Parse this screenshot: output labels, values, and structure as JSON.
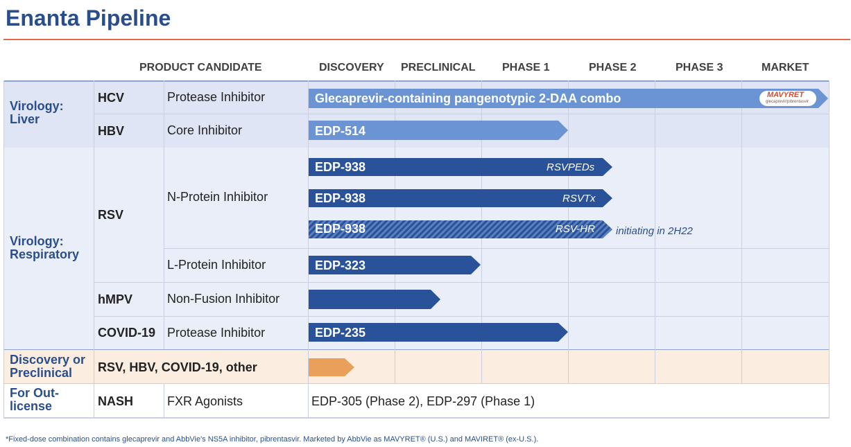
{
  "title": "Enanta Pipeline",
  "headers": {
    "product_candidate": "PRODUCT CANDIDATE",
    "phases": [
      "DISCOVERY",
      "PRECLINICAL",
      "PHASE 1",
      "PHASE 2",
      "PHASE 3",
      "MARKET"
    ]
  },
  "categories": {
    "liver": "Virology: Liver",
    "respiratory": "Virology: Respiratory",
    "discovery": "Discovery or Preclinical",
    "outlicense": "For Out-license"
  },
  "rows": {
    "hcv": {
      "target": "HCV",
      "mechanism": "Protease Inhibitor",
      "bar": "Glecaprevir-containing pangenotypic 2-DAA combo",
      "stage_fraction": 1.0
    },
    "hbv": {
      "target": "HBV",
      "mechanism": "Core Inhibitor",
      "bar": "EDP-514",
      "stage_fraction": 0.5
    },
    "rsv": {
      "target": "RSV",
      "mechanism_n": "N-Protein Inhibitor",
      "mechanism_l": "L-Protein Inhibitor"
    },
    "rsv1": {
      "bar": "EDP-938",
      "tag": "RSVPEDs"
    },
    "rsv2": {
      "bar": "EDP-938",
      "tag": "RSVTx"
    },
    "rsv3": {
      "bar": "EDP-938",
      "tag": "RSV-HR",
      "note": "initiating in 2H22"
    },
    "rsvl": {
      "bar": "EDP-323"
    },
    "hmpv": {
      "target": "hMPV",
      "mechanism": "Non-Fusion Inhibitor"
    },
    "covid": {
      "target": "COVID-19",
      "mechanism": "Protease Inhibitor",
      "bar": "EDP-235"
    },
    "discovery": {
      "label": "RSV, HBV, COVID-19, other"
    },
    "nash": {
      "target": "NASH",
      "mechanism": "FXR Agonists",
      "status": "EDP-305 (Phase 2), EDP-297 (Phase 1)"
    }
  },
  "badge": {
    "brand": "MAVYRET",
    "sub": "glecaprevir/pibrentasvir"
  },
  "footnote": "*Fixed-dose combination contains glecaprevir and AbbVie's NS5A inhibitor, pibrentasvir. Marketed by AbbVie as MAVYRET® (U.S.) and MAVIRET® (ex-U.S.).",
  "colors": {
    "title": "#2a4e8c",
    "rule": "#e06a4a",
    "dark_bar": "#2a5298",
    "light_bar": "#6a94d4",
    "orange_bar": "#e8a05a",
    "band_liver": "#dfe5f5",
    "band_resp": "#e9eef8",
    "band_disc": "#fbeee0"
  }
}
